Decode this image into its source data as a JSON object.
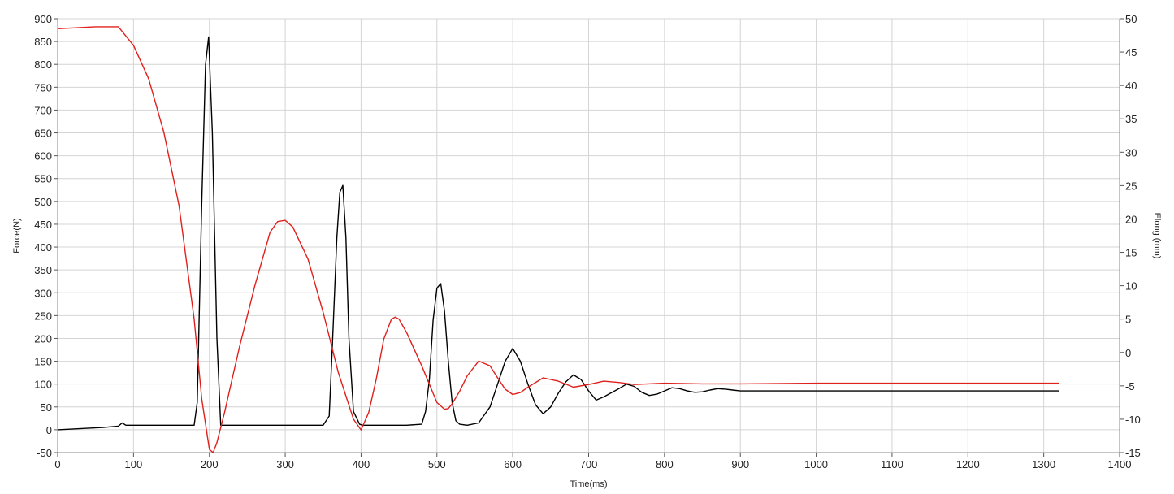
{
  "chart_data": {
    "type": "line",
    "title": "",
    "xlabel": "Time(ms)",
    "ylabel_left": "Force(N)",
    "ylabel_right": "Elong (mm)",
    "xlim": [
      0,
      1400
    ],
    "ylim_left": [
      -50,
      900
    ],
    "ylim_right": [
      -15,
      50
    ],
    "grid": true,
    "x_ticks": [
      "0",
      "100",
      "200",
      "300",
      "400",
      "500",
      "600",
      "700",
      "800",
      "900",
      "1000",
      "1100",
      "1200",
      "1300",
      "1400"
    ],
    "y_left_ticks": [
      "-50",
      "0",
      "50",
      "100",
      "150",
      "200",
      "250",
      "300",
      "350",
      "400",
      "450",
      "500",
      "550",
      "600",
      "650",
      "700",
      "750",
      "800",
      "850",
      "900"
    ],
    "y_right_ticks": [
      "-15",
      "-10",
      "-5",
      "0",
      "5",
      "10",
      "15",
      "20",
      "25",
      "30",
      "35",
      "40",
      "45",
      "50"
    ],
    "series": [
      {
        "axis": "left",
        "color": "#000000",
        "x": [
          0,
          60,
          80,
          85,
          90,
          100,
          120,
          150,
          180,
          184,
          190,
          195,
          199,
          204,
          210,
          215,
          220,
          260,
          300,
          340,
          350,
          358,
          362,
          368,
          372,
          376,
          380,
          384,
          390,
          398,
          402,
          420,
          460,
          480,
          485,
          490,
          495,
          500,
          505,
          510,
          515,
          520,
          525,
          530,
          540,
          555,
          570,
          580,
          590,
          600,
          610,
          620,
          630,
          640,
          650,
          660,
          670,
          680,
          690,
          700,
          710,
          720,
          740,
          750,
          760,
          770,
          780,
          790,
          800,
          810,
          820,
          830,
          840,
          850,
          860,
          870,
          880,
          890,
          900,
          950,
          1000,
          1100,
          1200,
          1320
        ],
        "y": [
          0,
          5,
          8,
          15,
          10,
          10,
          10,
          10,
          10,
          60,
          500,
          800,
          860,
          650,
          200,
          10,
          10,
          10,
          10,
          10,
          10,
          30,
          180,
          420,
          520,
          535,
          420,
          200,
          40,
          12,
          10,
          10,
          10,
          12,
          40,
          110,
          240,
          310,
          320,
          260,
          150,
          60,
          20,
          12,
          10,
          15,
          50,
          100,
          150,
          178,
          150,
          100,
          55,
          35,
          50,
          80,
          105,
          120,
          110,
          85,
          65,
          72,
          90,
          100,
          95,
          82,
          75,
          78,
          85,
          92,
          90,
          85,
          82,
          83,
          87,
          90,
          89,
          87,
          85,
          85,
          85,
          85,
          85,
          85
        ]
      },
      {
        "axis": "right",
        "color": "#e0201c",
        "x": [
          0,
          50,
          80,
          100,
          120,
          140,
          160,
          180,
          190,
          200,
          205,
          210,
          220,
          230,
          240,
          260,
          280,
          290,
          300,
          310,
          330,
          350,
          370,
          390,
          400,
          410,
          420,
          430,
          440,
          445,
          450,
          460,
          480,
          500,
          510,
          515,
          520,
          530,
          540,
          555,
          570,
          580,
          590,
          600,
          610,
          620,
          640,
          660,
          680,
          700,
          720,
          740,
          760,
          800,
          850,
          900,
          1000,
          1200,
          1320
        ],
        "y": [
          48.5,
          48.8,
          48.8,
          46,
          41,
          33,
          22,
          5,
          -7,
          -14.5,
          -15,
          -13.5,
          -9,
          -4,
          1,
          10,
          18,
          19.6,
          19.8,
          18.8,
          14,
          6,
          -3,
          -10,
          -11.6,
          -9,
          -4,
          2,
          5,
          5.3,
          5,
          3,
          -2,
          -7.5,
          -8.5,
          -8.4,
          -7.7,
          -5.8,
          -3.5,
          -1.3,
          -2,
          -3.8,
          -5.5,
          -6.3,
          -6,
          -5.2,
          -3.8,
          -4.3,
          -5.2,
          -4.8,
          -4.3,
          -4.5,
          -4.8,
          -4.6,
          -4.7,
          -4.7,
          -4.6,
          -4.6,
          -4.6
        ]
      }
    ]
  }
}
